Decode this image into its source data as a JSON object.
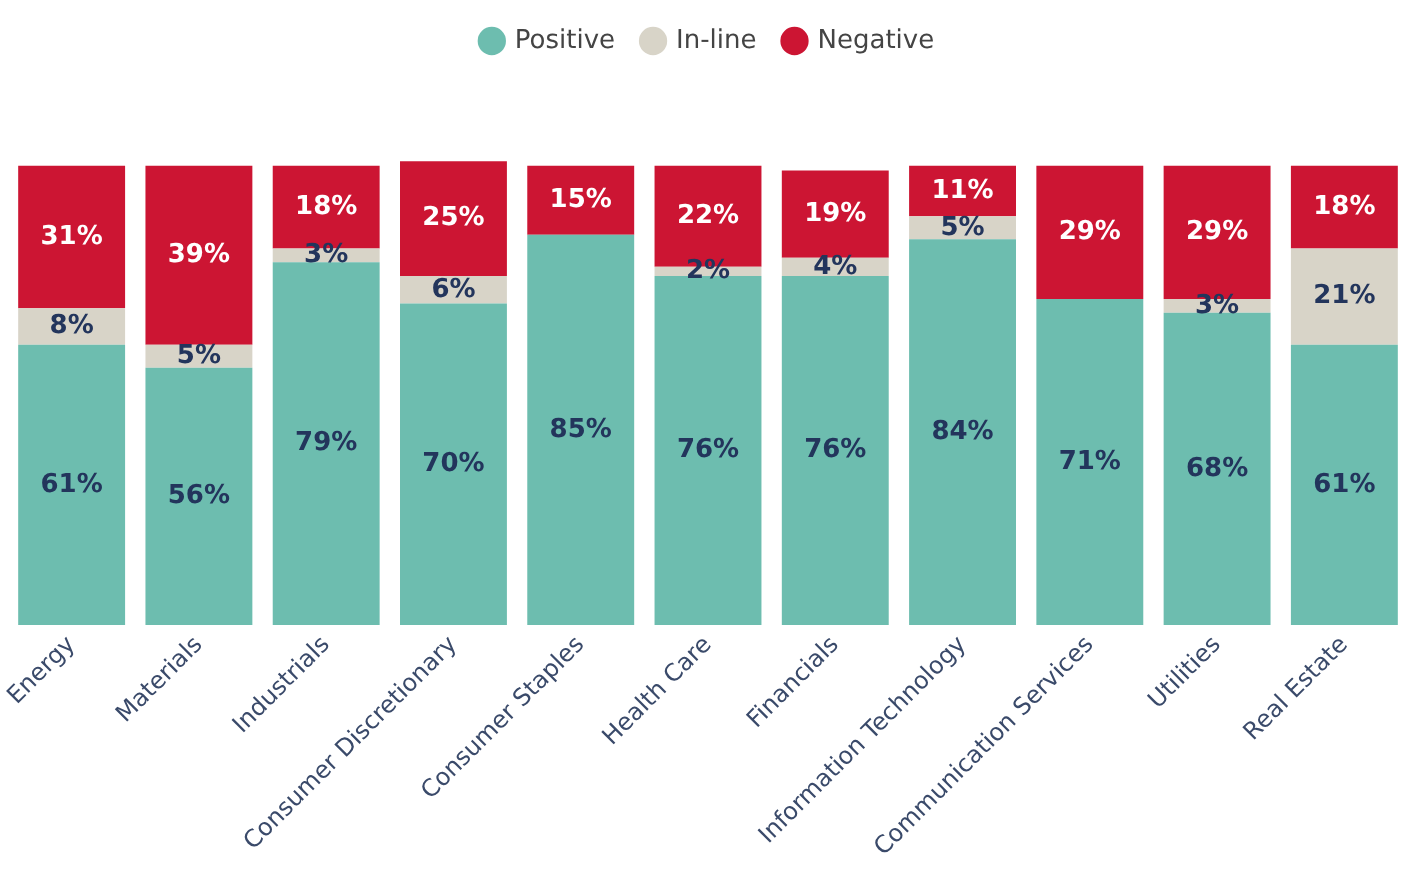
{
  "chart_data": {
    "type": "bar",
    "stacked": true,
    "legend": "top",
    "categories": [
      "Energy",
      "Materials",
      "Industrials",
      "Consumer Discretionary",
      "Consumer Staples",
      "Health Care",
      "Financials",
      "Information Technology",
      "Communication Services",
      "Utilities",
      "Real Estate"
    ],
    "series": [
      {
        "name": "Positive",
        "color": "#6dbdaf",
        "values": [
          61,
          56,
          79,
          70,
          85,
          76,
          76,
          84,
          71,
          68,
          61
        ],
        "value_labels": [
          "61%",
          "56%",
          "79%",
          "70%",
          "85%",
          "76%",
          "76%",
          "84%",
          "71%",
          "68%",
          "61%"
        ]
      },
      {
        "name": "In-line",
        "color": "#d8d4c8",
        "values": [
          8,
          5,
          3,
          6,
          0,
          2,
          4,
          5,
          0,
          3,
          21
        ],
        "value_labels": [
          "8%",
          "5%",
          "3%",
          "6%",
          null,
          "2%",
          "4%",
          "5%",
          null,
          "3%",
          "21%"
        ]
      },
      {
        "name": "Negative",
        "color": "#cc1533",
        "values": [
          31,
          39,
          18,
          25,
          15,
          22,
          19,
          11,
          29,
          29,
          18
        ],
        "value_labels": [
          "31%",
          "39%",
          "18%",
          "25%",
          "15%",
          "22%",
          "19%",
          "11%",
          "29%",
          "29%",
          "18%"
        ]
      }
    ]
  }
}
